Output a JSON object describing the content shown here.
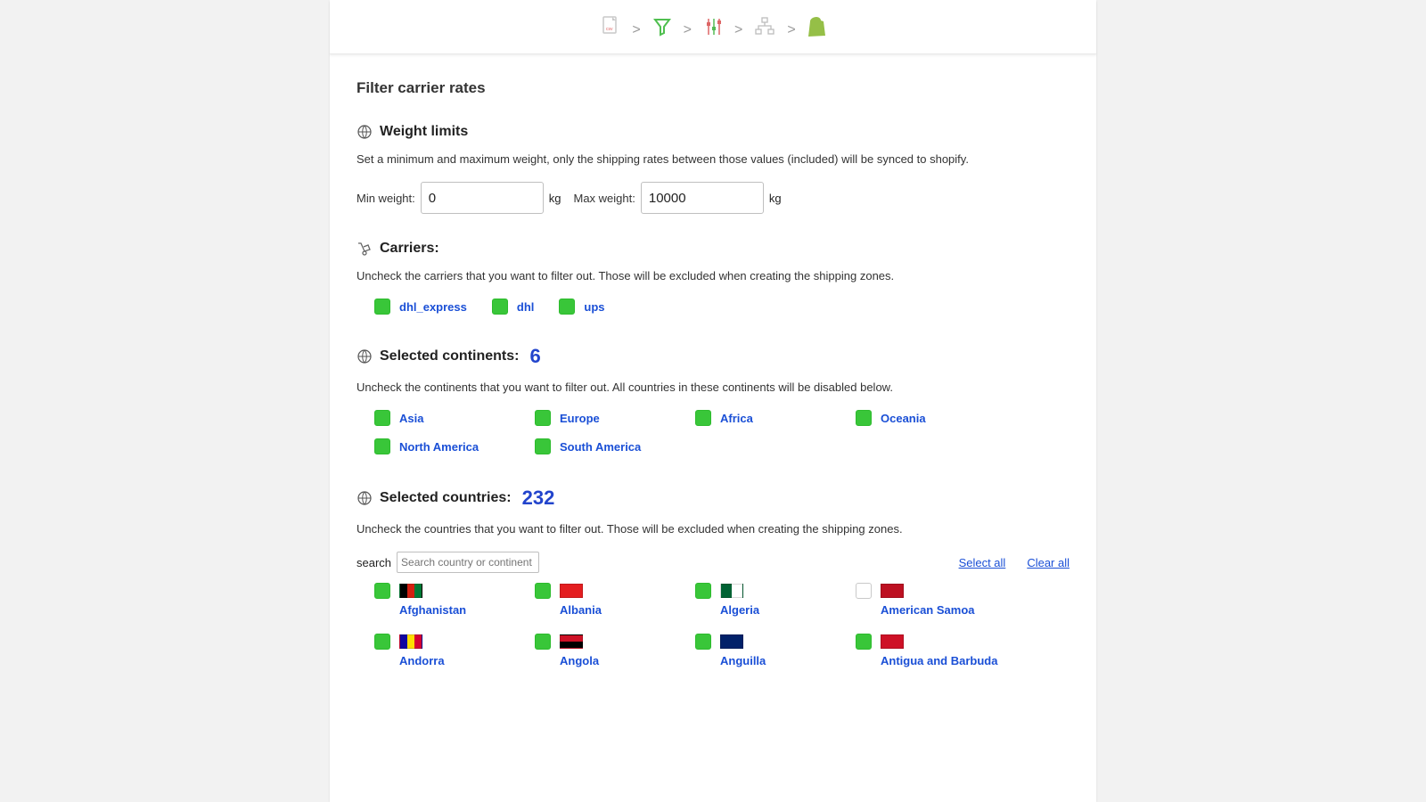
{
  "page": {
    "title": "Filter carrier rates"
  },
  "steps": {
    "sep": ">"
  },
  "weight": {
    "heading": "Weight limits",
    "help": "Set a minimum and maximum weight, only the shipping rates between those values (included) will be synced to shopify.",
    "min_label": "Min weight:",
    "min_value": "0",
    "max_label": "Max weight:",
    "max_value": "10000",
    "unit": "kg"
  },
  "carriers": {
    "heading": "Carriers:",
    "help": "Uncheck the carriers that you want to filter out. Those will be excluded when creating the shipping zones.",
    "items": [
      {
        "label": "dhl_express",
        "checked": true
      },
      {
        "label": "dhl",
        "checked": true
      },
      {
        "label": "ups",
        "checked": true
      }
    ]
  },
  "continents": {
    "heading": "Selected continents:",
    "count": "6",
    "help": "Uncheck the continents that you want to filter out. All countries in these continents will be disabled below.",
    "items": [
      {
        "label": "Asia",
        "checked": true
      },
      {
        "label": "Europe",
        "checked": true
      },
      {
        "label": "Africa",
        "checked": true
      },
      {
        "label": "Oceania",
        "checked": true
      },
      {
        "label": "North America",
        "checked": true
      },
      {
        "label": "South America",
        "checked": true
      }
    ]
  },
  "countries": {
    "heading": "Selected countries:",
    "count": "232",
    "help": "Uncheck the countries that you want to filter out. Those will be excluded when creating the shipping zones.",
    "search_label": "search",
    "search_placeholder": "Search country or continent",
    "select_all": "Select all",
    "clear_all": "Clear all",
    "items": [
      {
        "label": "Afghanistan",
        "checked": true,
        "flag_css": "background: linear-gradient(90deg,#000 0 33%,#d32011 33% 66%,#007a36 66% 100%);"
      },
      {
        "label": "Albania",
        "checked": true,
        "flag_css": "background:#e41e20;"
      },
      {
        "label": "Algeria",
        "checked": true,
        "flag_css": "background: linear-gradient(90deg,#006233 0 50%,#ffffff 50% 100%);"
      },
      {
        "label": "American Samoa",
        "checked": false,
        "flag_css": "background:#bd1021;"
      },
      {
        "label": "Andorra",
        "checked": true,
        "flag_css": "background: linear-gradient(90deg,#10069f 0 33%,#fedd00 33% 66%,#d50032 66% 100%);"
      },
      {
        "label": "Angola",
        "checked": true,
        "flag_css": "background: linear-gradient(180deg,#ce1126 0 50%,#000000 50% 100%);"
      },
      {
        "label": "Anguilla",
        "checked": true,
        "flag_css": "background:#012169;"
      },
      {
        "label": "Antigua and Barbuda",
        "checked": true,
        "flag_css": "background:#ce1126;"
      }
    ]
  },
  "colors": {
    "link": "#1a4fd6",
    "checkbox_green": "#39c639",
    "badge_blue": "#2244cc",
    "page_bg": "#f2f2f2"
  }
}
